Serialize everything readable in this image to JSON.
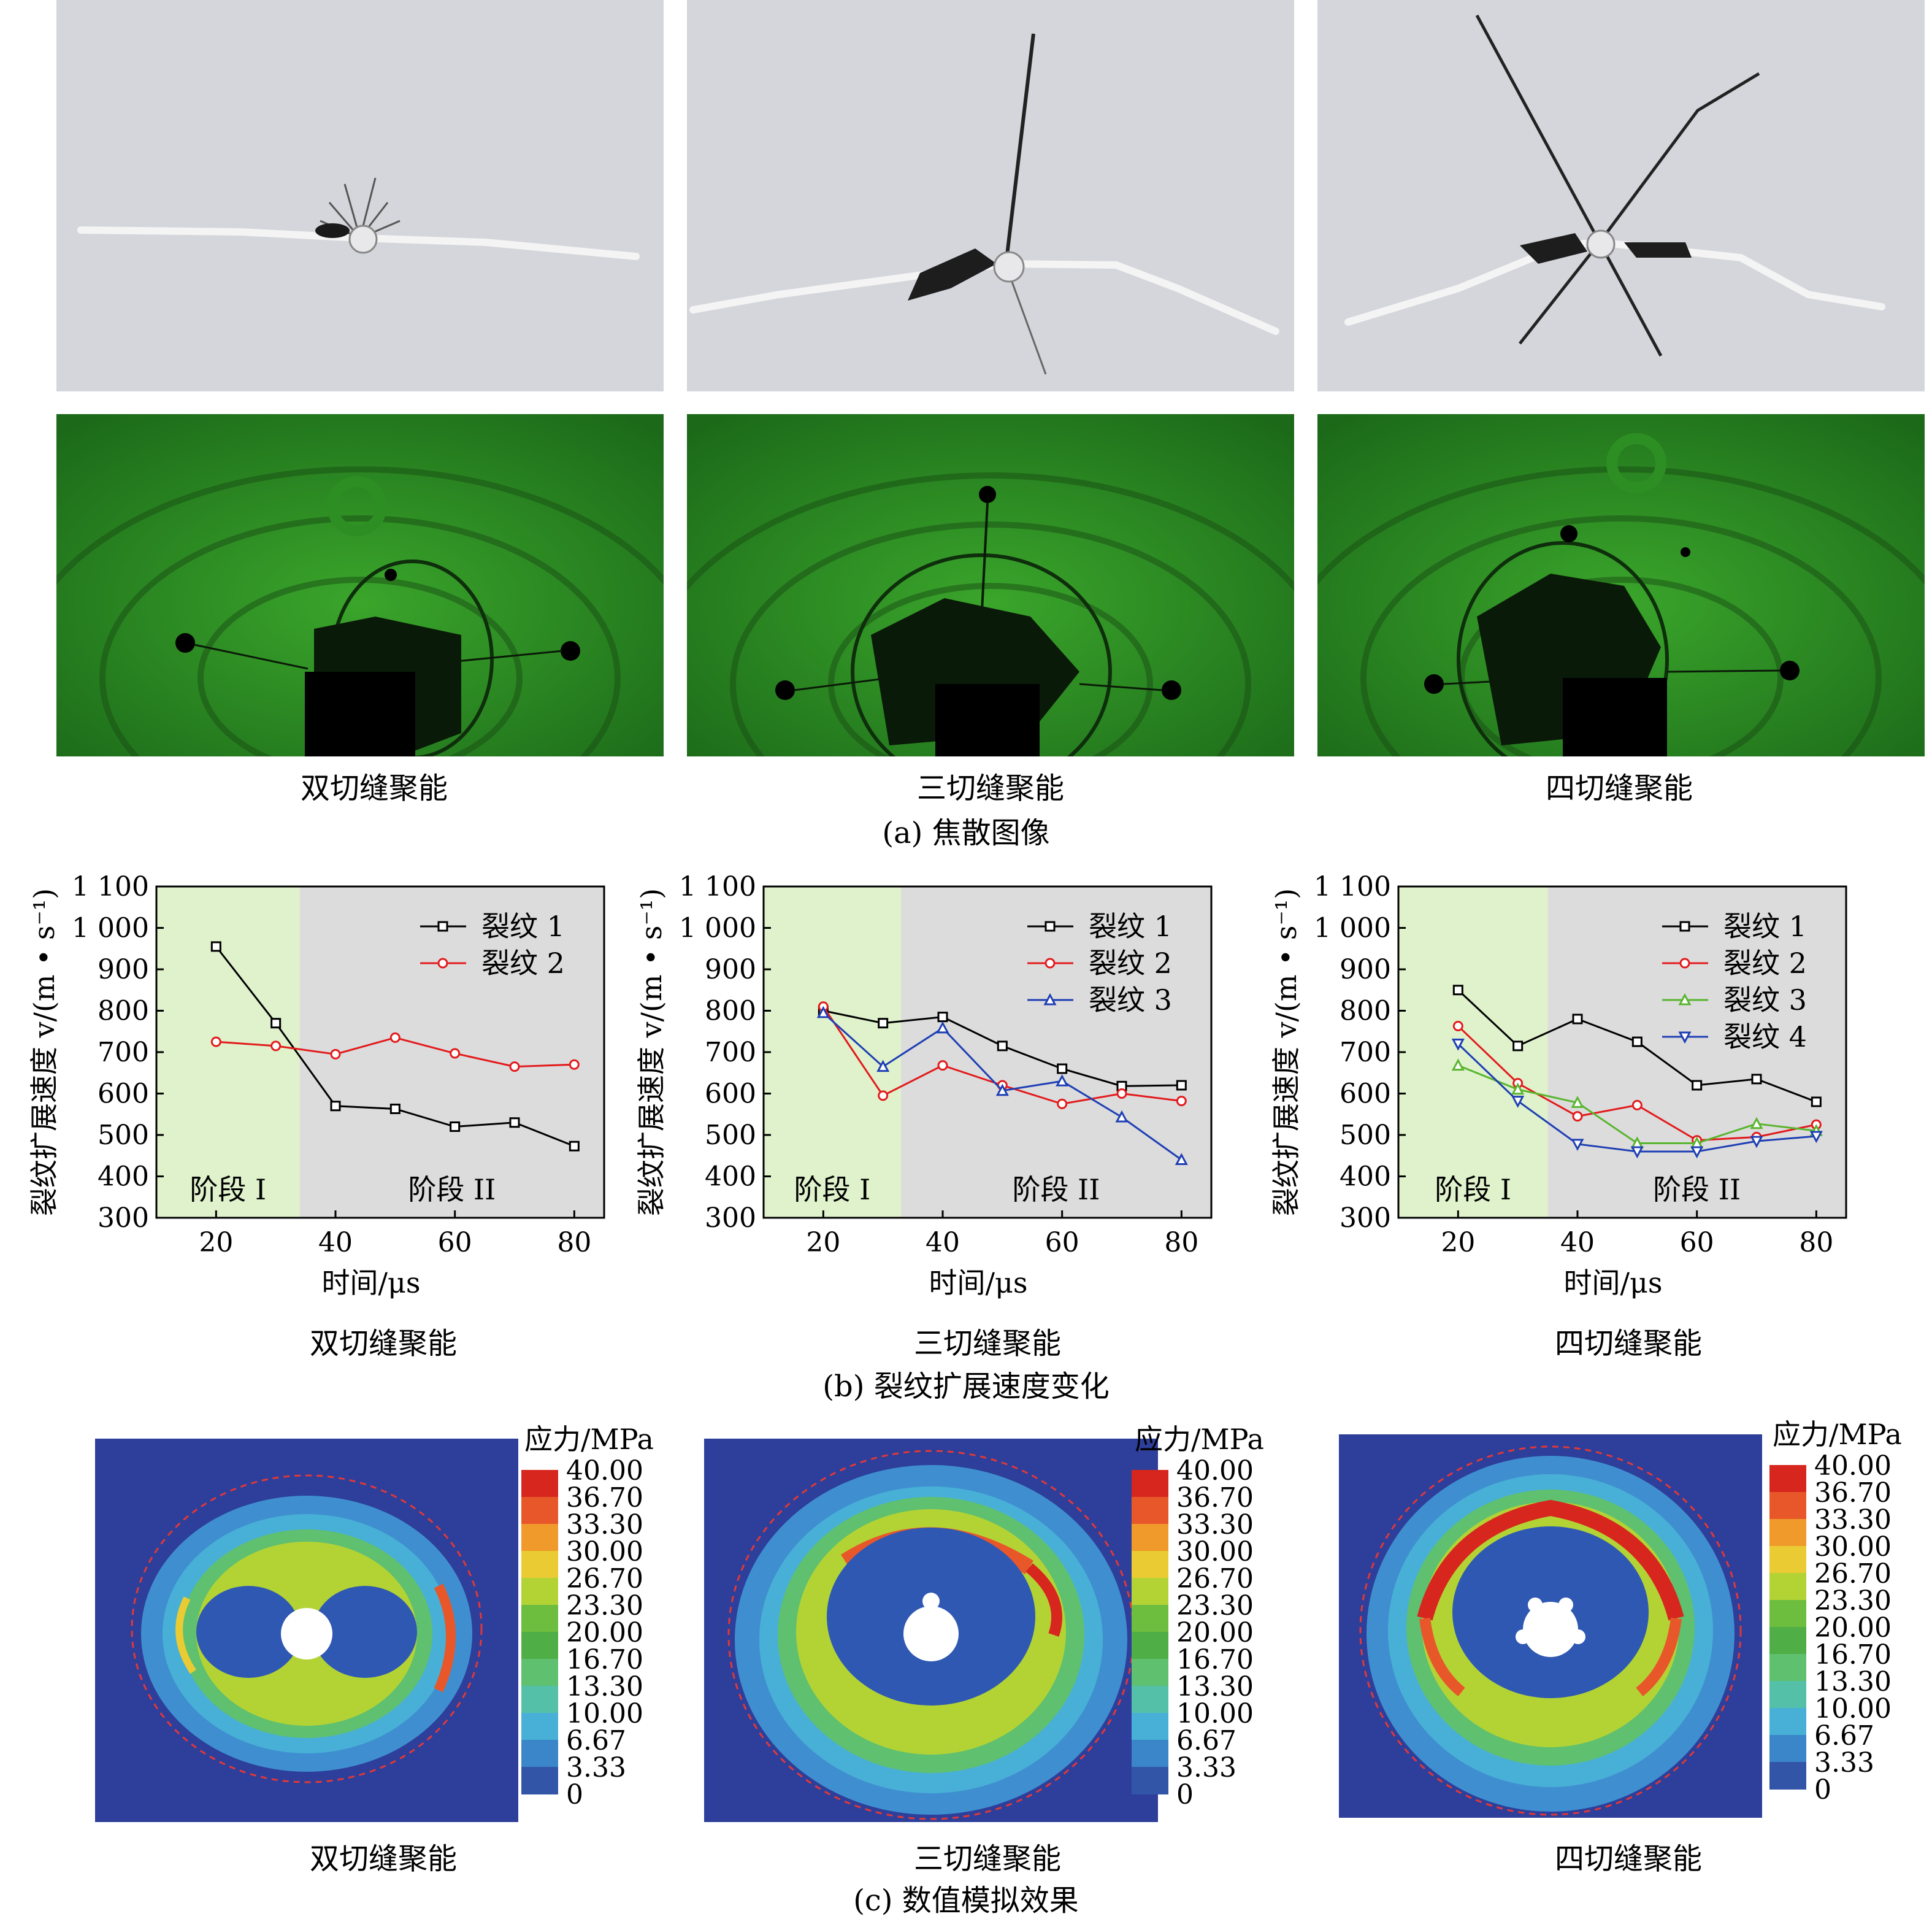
{
  "panel_a": {
    "caption": "(a) 焦散图像",
    "labels": [
      "双切缝聚能",
      "三切缝聚能",
      "四切缝聚能"
    ]
  },
  "panel_b": {
    "caption": "(b) 裂纹扩展速度变化",
    "labels": [
      "双切缝聚能",
      "三切缝聚能",
      "四切缝聚能"
    ]
  },
  "panel_c": {
    "caption": "(c) 数值模拟效果",
    "labels": [
      "双切缝聚能",
      "三切缝聚能",
      "四切缝聚能"
    ],
    "colorbar_title": "应力/MPa",
    "colorbar_levels": [
      "40.00",
      "36.70",
      "33.30",
      "30.00",
      "26.70",
      "23.30",
      "20.00",
      "16.70",
      "13.30",
      "10.00",
      "6.67",
      "3.33",
      "0"
    ],
    "colorbar_colors": [
      "#d7261e",
      "#e8572a",
      "#ef9a2b",
      "#eacb33",
      "#b3d335",
      "#6dbd3e",
      "#4fae45",
      "#5fc06f",
      "#55c0a8",
      "#48b0d6",
      "#3a86c8",
      "#3355a8",
      "#2c3f9a"
    ]
  },
  "chart_data": [
    {
      "type": "line",
      "xlabel": "时间/μs",
      "ylabel": "裂纹扩展速度 v/(m • s⁻¹)",
      "ylim": [
        300,
        1100
      ],
      "xlim": [
        10,
        85
      ],
      "xticks": [
        "20",
        "40",
        "60",
        "80"
      ],
      "yticks": [
        "300",
        "400",
        "500",
        "600",
        "700",
        "800",
        "900",
        "1 000",
        "1 100"
      ],
      "stage_boundary": 34,
      "stages": [
        "阶段 I",
        "阶段 II"
      ],
      "stage_colors": [
        "#dff2cc",
        "#dcdcdc"
      ],
      "legend_position": "top-right",
      "series": [
        {
          "name": "裂纹 1",
          "color": "#000000",
          "marker": "square",
          "x": [
            20,
            30,
            40,
            50,
            60,
            70,
            80
          ],
          "y": [
            955,
            770,
            570,
            563,
            520,
            530,
            473
          ]
        },
        {
          "name": "裂纹 2",
          "color": "#e31a1c",
          "marker": "circle",
          "x": [
            20,
            30,
            40,
            50,
            60,
            70,
            80
          ],
          "y": [
            725,
            715,
            695,
            735,
            697,
            665,
            670
          ]
        }
      ]
    },
    {
      "type": "line",
      "xlabel": "时间/μs",
      "ylabel": "裂纹扩展速度 v/(m • s⁻¹)",
      "ylim": [
        300,
        1100
      ],
      "xlim": [
        10,
        85
      ],
      "xticks": [
        "20",
        "40",
        "60",
        "80"
      ],
      "yticks": [
        "300",
        "400",
        "500",
        "600",
        "700",
        "800",
        "900",
        "1 000",
        "1 100"
      ],
      "stage_boundary": 33,
      "stages": [
        "阶段 I",
        "阶段 II"
      ],
      "stage_colors": [
        "#dff2cc",
        "#dcdcdc"
      ],
      "legend_position": "top-right",
      "series": [
        {
          "name": "裂纹 1",
          "color": "#000000",
          "marker": "square",
          "x": [
            20,
            30,
            40,
            50,
            60,
            70,
            80
          ],
          "y": [
            800,
            770,
            785,
            715,
            660,
            618,
            620
          ]
        },
        {
          "name": "裂纹 2",
          "color": "#e31a1c",
          "marker": "circle",
          "x": [
            20,
            30,
            40,
            50,
            60,
            70,
            80
          ],
          "y": [
            810,
            595,
            668,
            620,
            575,
            600,
            582
          ]
        },
        {
          "name": "裂纹 3",
          "color": "#1f3fb4",
          "marker": "triangle-up",
          "x": [
            20,
            30,
            40,
            50,
            60,
            70,
            80
          ],
          "y": [
            795,
            665,
            758,
            607,
            630,
            543,
            440
          ]
        }
      ]
    },
    {
      "type": "line",
      "xlabel": "时间/μs",
      "ylabel": "裂纹扩展速度 v/(m • s⁻¹)",
      "ylim": [
        300,
        1100
      ],
      "xlim": [
        10,
        85
      ],
      "xticks": [
        "20",
        "40",
        "60",
        "80"
      ],
      "yticks": [
        "300",
        "400",
        "500",
        "600",
        "700",
        "800",
        "900",
        "1 000",
        "1 100"
      ],
      "stage_boundary": 35,
      "stages": [
        "阶段 I",
        "阶段 II"
      ],
      "stage_colors": [
        "#dff2cc",
        "#dcdcdc"
      ],
      "legend_position": "top-right",
      "series": [
        {
          "name": "裂纹 1",
          "color": "#000000",
          "marker": "square",
          "x": [
            20,
            30,
            40,
            50,
            60,
            70,
            80
          ],
          "y": [
            850,
            715,
            780,
            725,
            620,
            635,
            580
          ]
        },
        {
          "name": "裂纹 2",
          "color": "#e31a1c",
          "marker": "circle",
          "x": [
            20,
            30,
            40,
            50,
            60,
            70,
            80
          ],
          "y": [
            763,
            625,
            545,
            572,
            487,
            495,
            525
          ]
        },
        {
          "name": "裂纹 3",
          "color": "#5ab52f",
          "marker": "triangle-up",
          "x": [
            20,
            30,
            40,
            50,
            60,
            70,
            80
          ],
          "y": [
            668,
            610,
            578,
            480,
            480,
            527,
            510
          ]
        },
        {
          "name": "裂纹 4",
          "color": "#1f3fb4",
          "marker": "triangle-down",
          "x": [
            20,
            30,
            40,
            50,
            60,
            70,
            80
          ],
          "y": [
            720,
            582,
            478,
            460,
            460,
            485,
            497
          ]
        }
      ]
    }
  ]
}
